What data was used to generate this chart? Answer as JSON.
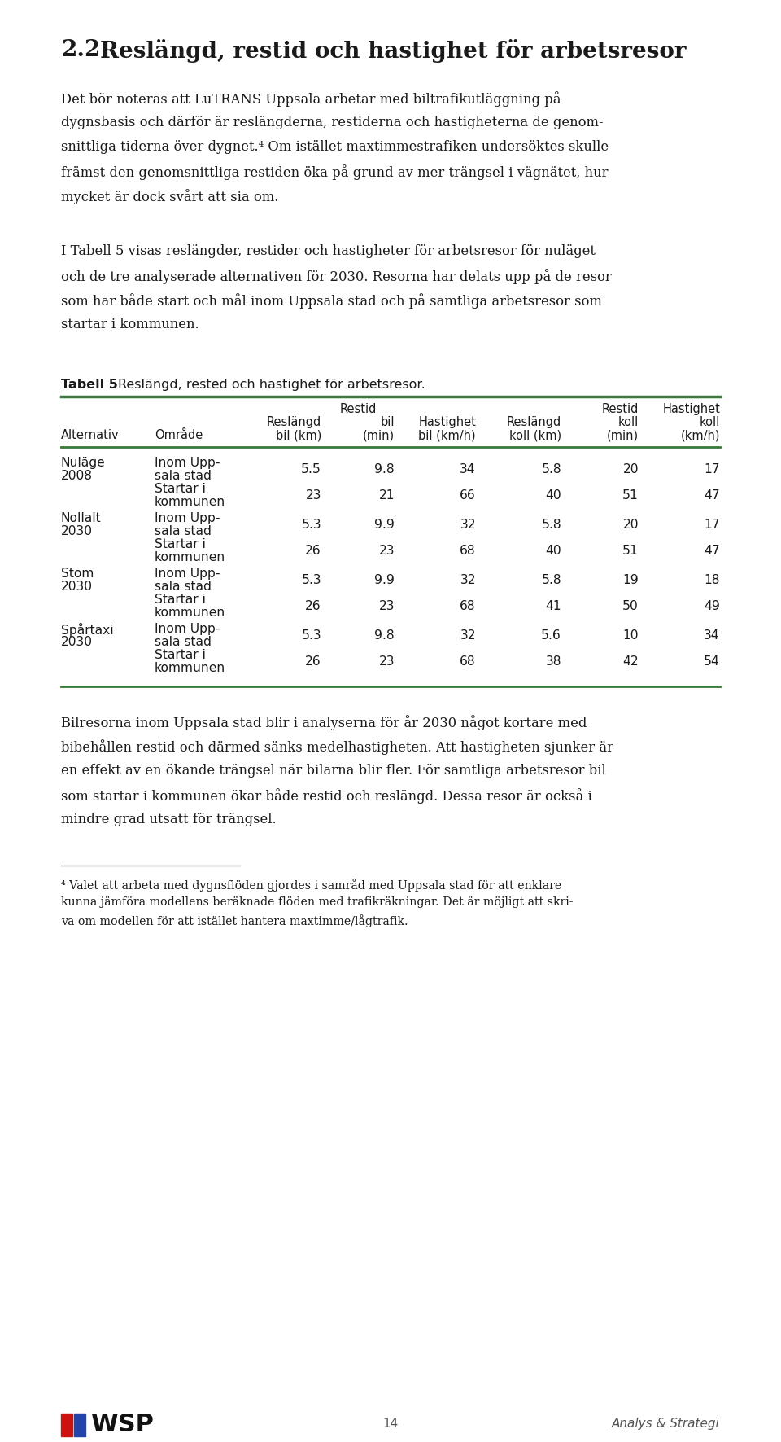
{
  "title_num": "2.2",
  "title_text": "Reslängd, restid och hastighet för arbetsresor",
  "body1_lines": [
    "Det bör noteras att LuTRANS Uppsala arbetar med biltrafikutläggning på",
    "dygnsbasis och därför är reslängderna, restiderna och hastigheterna de genom-",
    "snittliga tiderna över dygnet.⁴ Om istället maxtimmestrafiken undersöktes skulle",
    "främst den genomsnittliga restiden öka på grund av mer trängsel i vägnätet, hur",
    "mycket är dock svårt att sia om."
  ],
  "body2_lines": [
    "I Tabell 5 visas reslängder, restider och hastigheter för arbetsresor för nuläget",
    "och de tre analyserade alternativen för 2030. Resorna har delats upp på de resor",
    "som har både start och mål inom Uppsala stad och på samtliga arbetsresor som",
    "startar i kommunen."
  ],
  "table_label": "Tabell 5",
  "table_caption": "Reslängd, rested och hastighet för arbetsresor.",
  "table_rows": [
    [
      "Nuläge",
      "2008",
      "Inom Upp-",
      "sala stad",
      "5.5",
      "9.8",
      "34",
      "5.8",
      "20",
      "17"
    ],
    [
      "",
      "",
      "Startar i",
      "kommunen",
      "23",
      "21",
      "66",
      "40",
      "51",
      "47"
    ],
    [
      "Nollalt",
      "2030",
      "Inom Upp-",
      "sala stad",
      "5.3",
      "9.9",
      "32",
      "5.8",
      "20",
      "17"
    ],
    [
      "",
      "",
      "Startar i",
      "kommunen",
      "26",
      "23",
      "68",
      "40",
      "51",
      "47"
    ],
    [
      "Stom",
      "2030",
      "Inom Upp-",
      "sala stad",
      "5.3",
      "9.9",
      "32",
      "5.8",
      "19",
      "18"
    ],
    [
      "",
      "",
      "Startar i",
      "kommunen",
      "26",
      "23",
      "68",
      "41",
      "50",
      "49"
    ],
    [
      "Spårtaxi",
      "2030",
      "Inom Upp-",
      "sala stad",
      "5.3",
      "9.8",
      "32",
      "5.6",
      "10",
      "34"
    ],
    [
      "",
      "",
      "Startar i",
      "kommunen",
      "26",
      "23",
      "68",
      "38",
      "42",
      "54"
    ]
  ],
  "body3_lines": [
    "Bilresorna inom Uppsala stad blir i analyserna för år 2030 något kortare med",
    "bibehållen restid och därmed sänks medelhastigheten. Att hastigheten sjunker är",
    "en effekt av en ökande trängsel när bilarna blir fler. För samtliga arbetsresor bil",
    "som startar i kommunen ökar både restid och reslängd. Dessa resor är också i",
    "mindre grad utsatt för trängsel."
  ],
  "footnote_lines": [
    "⁴ Valet att arbeta med dygnsflöden gjordes i samråd med Uppsala stad för att enklare",
    "kunna jämföra modellens beräknade flöden med trafikräkningar. Det är möjligt att skri-",
    "va om modellen för att istället hantera maxtimme/lågtrafik."
  ],
  "page_number": "14",
  "footer_right": "Analys & Strategi",
  "green_color": "#3a7a3a",
  "text_color": "#1a1a1a",
  "gray_color": "#555555",
  "bg_color": "#ffffff",
  "ml": 75,
  "mr": 885
}
